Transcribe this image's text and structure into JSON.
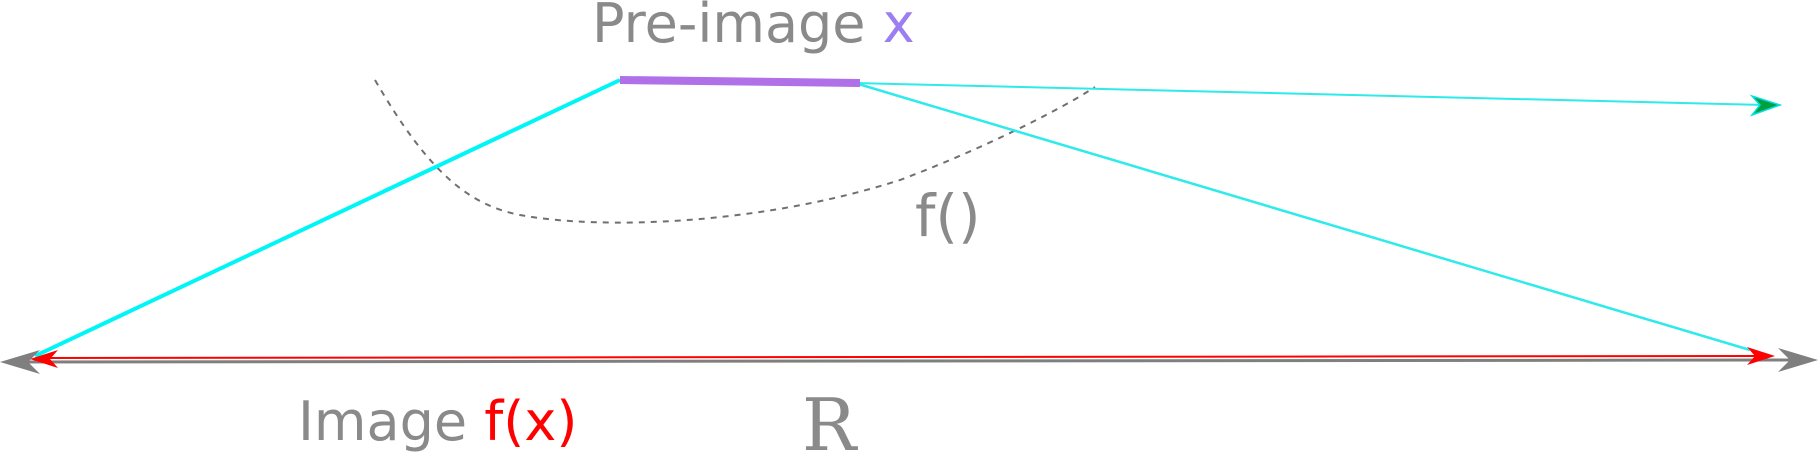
{
  "labels": {
    "preimage_text": "Pre-image ",
    "preimage_var": "x",
    "function": "f()",
    "image_text": "Image ",
    "image_var": "f(x)",
    "space": "R"
  },
  "colors": {
    "label_gray": "#8a8a8a",
    "preimage_accent": "#9b7ef0",
    "image_accent": "#ff0000",
    "preimage_segment": "#b070e8",
    "mapping_line": "#00f6f6",
    "axis_arrow": "#7f7f7f",
    "image_segment": "#ff0000",
    "extended_arrowhead": "#00a040",
    "dashed_arc": "#707070"
  }
}
